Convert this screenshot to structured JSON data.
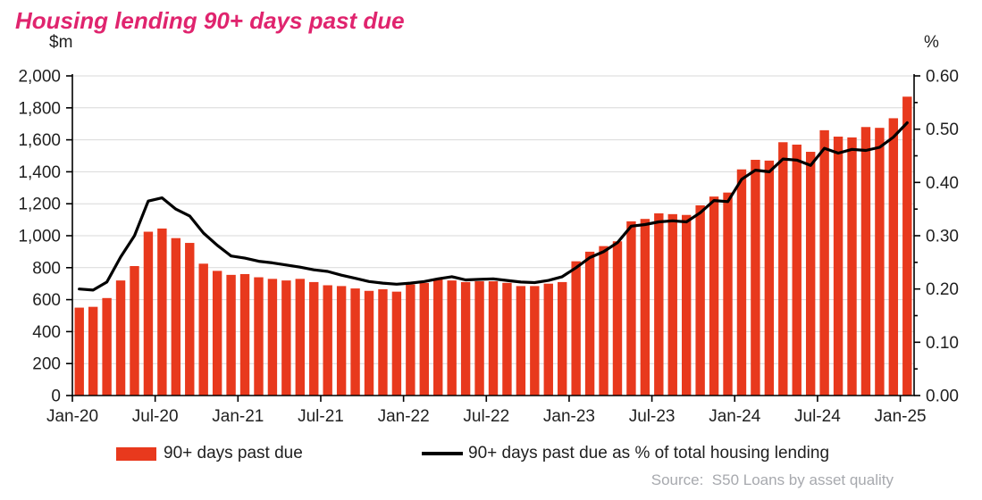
{
  "title": "Housing lending 90+ days past due",
  "title_color": "#E0246E",
  "left_axis": {
    "unit": "$m",
    "tick_labels": [
      "0",
      "200",
      "400",
      "600",
      "800",
      "1,000",
      "1,200",
      "1,400",
      "1,600",
      "1,800",
      "2,000"
    ]
  },
  "right_axis": {
    "unit": "%",
    "tick_labels": [
      "0.00",
      "0.10",
      "0.20",
      "0.30",
      "0.40",
      "0.50",
      "0.60"
    ]
  },
  "x_axis": {
    "tick_labels": [
      "Jan-20",
      "Jul-20",
      "Jan-21",
      "Jul-21",
      "Jan-22",
      "Jul-22",
      "Jan-23",
      "Jul-23",
      "Jan-24",
      "Jul-24",
      "Jan-25"
    ],
    "tick_month_indices": [
      0,
      6,
      12,
      18,
      24,
      30,
      36,
      42,
      48,
      54,
      60
    ]
  },
  "legend": {
    "bar_label": "90+ days past due",
    "line_label": "90+ days past due as % of total housing lending"
  },
  "source": "Source:  S50 Loans by asset quality",
  "colors": {
    "bar": "#E8391D",
    "line": "#000000",
    "gridline": "#D9D9D9",
    "axis": "#000000",
    "tick_text": "#1f1f1f"
  },
  "chart_data": {
    "type": "bar",
    "subtype": "bar+line combo, dual axis",
    "title": "Housing lending 90+ days past due",
    "x": [
      "Jan-20",
      "Feb-20",
      "Mar-20",
      "Apr-20",
      "May-20",
      "Jun-20",
      "Jul-20",
      "Aug-20",
      "Sep-20",
      "Oct-20",
      "Nov-20",
      "Dec-20",
      "Jan-21",
      "Feb-21",
      "Mar-21",
      "Apr-21",
      "May-21",
      "Jun-21",
      "Jul-21",
      "Aug-21",
      "Sep-21",
      "Oct-21",
      "Nov-21",
      "Dec-21",
      "Jan-22",
      "Feb-22",
      "Mar-22",
      "Apr-22",
      "May-22",
      "Jun-22",
      "Jul-22",
      "Aug-22",
      "Sep-22",
      "Oct-22",
      "Nov-22",
      "Dec-22",
      "Jan-23",
      "Feb-23",
      "Mar-23",
      "Apr-23",
      "May-23",
      "Jun-23",
      "Jul-23",
      "Aug-23",
      "Sep-23",
      "Oct-23",
      "Nov-23",
      "Dec-23",
      "Jan-24",
      "Feb-24",
      "Mar-24",
      "Apr-24",
      "May-24",
      "Jun-24",
      "Jul-24",
      "Aug-24",
      "Sep-24",
      "Oct-24",
      "Nov-24",
      "Dec-24",
      "Jan-25"
    ],
    "series": [
      {
        "name": "90+ days past due",
        "type": "bar",
        "axis": "left",
        "unit": "$m",
        "color": "#E8391D",
        "values": [
          550,
          555,
          610,
          720,
          810,
          1025,
          1045,
          985,
          955,
          825,
          780,
          755,
          760,
          740,
          730,
          720,
          730,
          710,
          690,
          685,
          670,
          655,
          665,
          650,
          695,
          705,
          730,
          720,
          710,
          715,
          715,
          705,
          685,
          685,
          700,
          710,
          840,
          900,
          935,
          965,
          1090,
          1105,
          1140,
          1135,
          1130,
          1190,
          1245,
          1270,
          1415,
          1475,
          1470,
          1585,
          1570,
          1525,
          1660,
          1620,
          1615,
          1680,
          1675,
          1735,
          1870
        ]
      },
      {
        "name": "90+ days past due as % of total housing lending",
        "type": "line",
        "axis": "right",
        "unit": "%",
        "color": "#000000",
        "values": [
          0.2,
          0.198,
          0.213,
          0.26,
          0.3,
          0.365,
          0.371,
          0.35,
          0.337,
          0.305,
          0.282,
          0.262,
          0.258,
          0.252,
          0.249,
          0.245,
          0.241,
          0.236,
          0.233,
          0.226,
          0.22,
          0.214,
          0.211,
          0.209,
          0.211,
          0.214,
          0.219,
          0.223,
          0.217,
          0.218,
          0.219,
          0.216,
          0.213,
          0.212,
          0.216,
          0.223,
          0.24,
          0.259,
          0.27,
          0.287,
          0.318,
          0.321,
          0.326,
          0.328,
          0.326,
          0.343,
          0.366,
          0.364,
          0.406,
          0.423,
          0.42,
          0.444,
          0.442,
          0.432,
          0.464,
          0.455,
          0.462,
          0.46,
          0.466,
          0.485,
          0.512
        ]
      }
    ],
    "ylim_left": [
      0,
      2000
    ],
    "ylim_right": [
      0,
      0.6
    ],
    "y_left_major_step": 200,
    "y_right_major_step": 0.1,
    "y_right_minor_step": 0.05,
    "grid": "horizontal only",
    "legend_position": "bottom"
  }
}
